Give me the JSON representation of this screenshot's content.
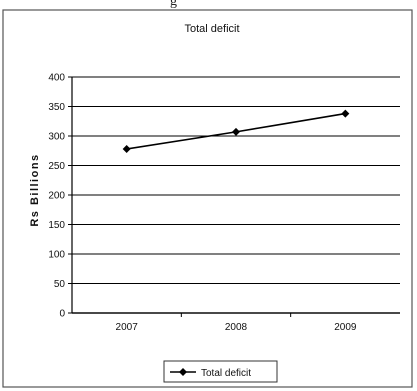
{
  "chart_data": {
    "type": "line",
    "title": "Total deficit",
    "xlabel": "",
    "ylabel": "Rs Billions",
    "categories": [
      "2007",
      "2008",
      "2009"
    ],
    "series": [
      {
        "name": "Total deficit",
        "values": [
          278,
          307,
          338
        ],
        "color": "#000000",
        "marker": "diamond"
      }
    ],
    "ylim": [
      0,
      400
    ],
    "yticks": [
      "0",
      "50",
      "100",
      "150",
      "200",
      "250",
      "300",
      "350",
      "400"
    ],
    "grid": true,
    "legend": "bottom"
  },
  "top_cut_text": "g"
}
